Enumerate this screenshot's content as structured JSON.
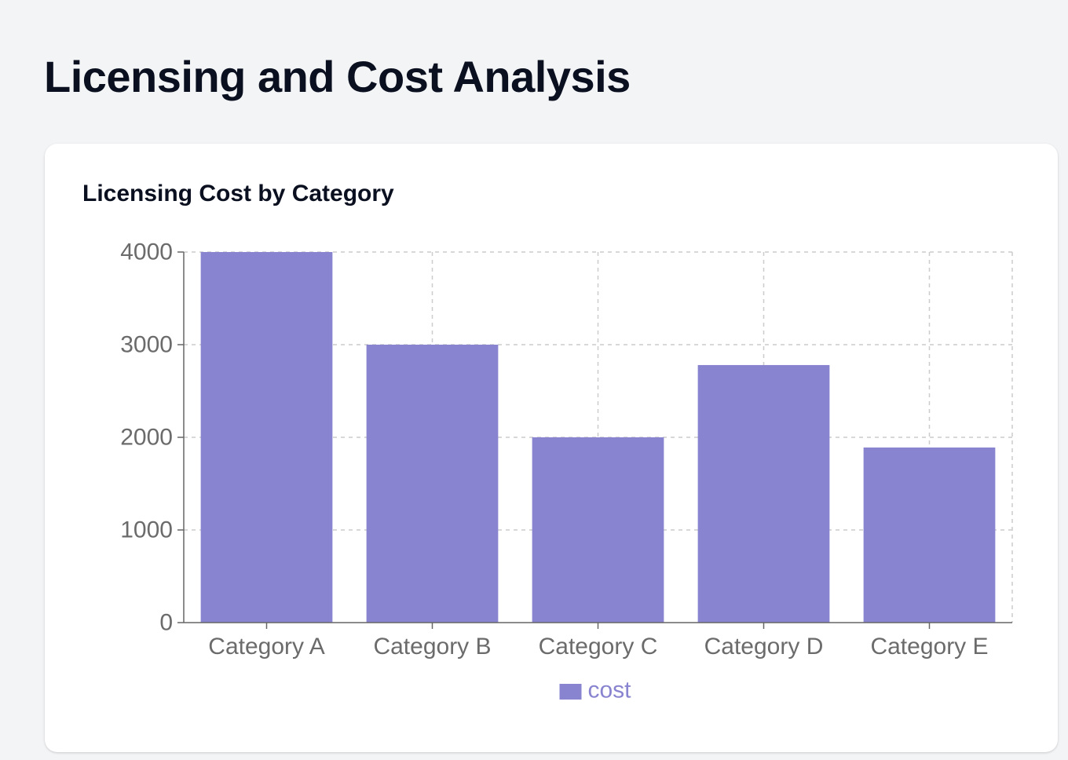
{
  "page": {
    "title": "Licensing and Cost Analysis"
  },
  "card": {
    "title": "Licensing Cost by Category"
  },
  "colors": {
    "bar": "#8884d0",
    "grid": "#cccccc",
    "axis": "#666666",
    "tick_text": "#6b6b6b"
  },
  "chart_data": {
    "type": "bar",
    "categories": [
      "Category A",
      "Category B",
      "Category C",
      "Category D",
      "Category E"
    ],
    "series": [
      {
        "name": "cost",
        "values": [
          4000,
          3000,
          2000,
          2780,
          1890
        ]
      }
    ],
    "yticks": [
      0,
      1000,
      2000,
      3000,
      4000
    ],
    "ylim": [
      0,
      4000
    ],
    "grid": true,
    "legend": "bottom-center"
  }
}
